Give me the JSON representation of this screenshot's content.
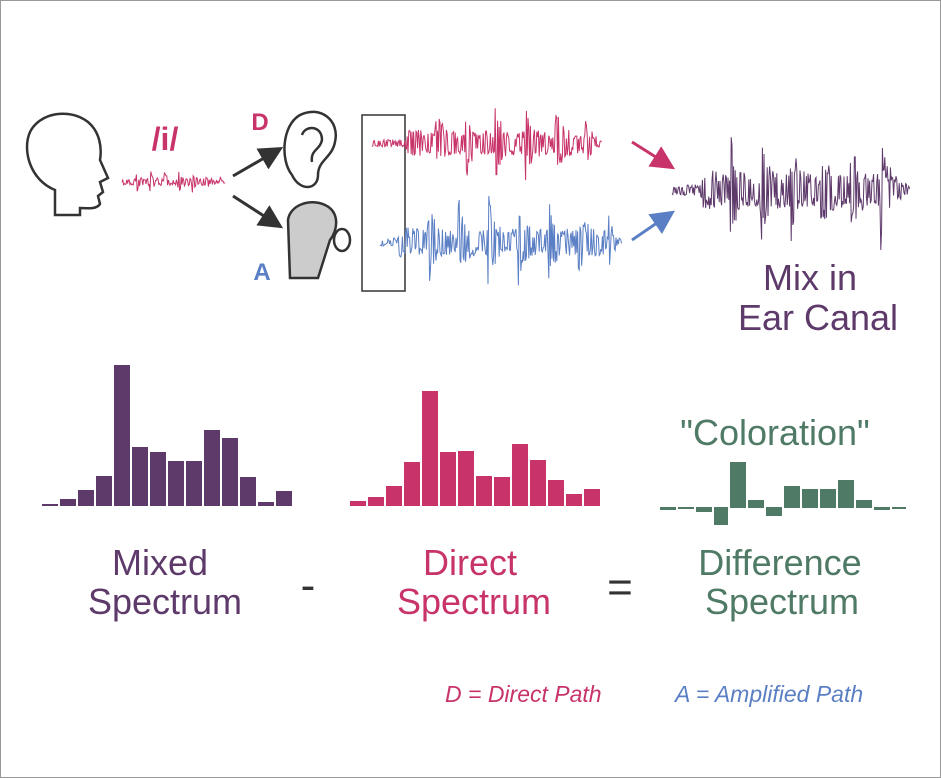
{
  "sound": "/i/",
  "direct_label": "D",
  "amplified_label": "A",
  "mix": {
    "line1": "Mix in",
    "line2": "Ear Canal"
  },
  "coloration": "\"Coloration\"",
  "mixed": {
    "line1": "Mixed",
    "line2": "Spectrum"
  },
  "minus": "-",
  "direct": {
    "line1": "Direct",
    "line2": "Spectrum"
  },
  "equals": "=",
  "difference": {
    "line1": "Difference",
    "line2": "Spectrum"
  },
  "legend": {
    "direct": "D = Direct Path",
    "amplified": "A = Amplified Path"
  }
}
